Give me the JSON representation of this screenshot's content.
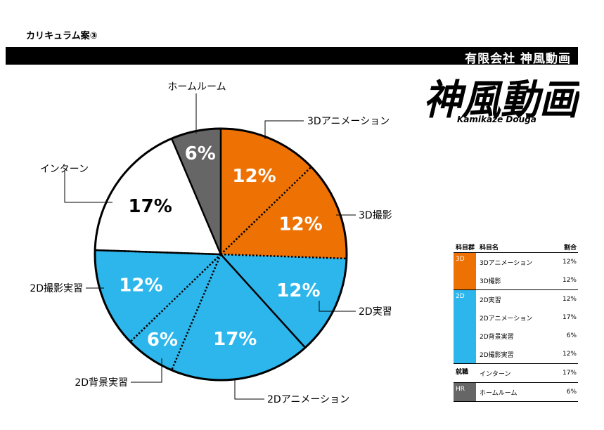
{
  "doc_title": "カリキュラム案③",
  "company": "有限会社 神風動画",
  "logo": {
    "main": "神風動画",
    "sub": "Kamikaze Douga"
  },
  "chart_data": {
    "type": "pie",
    "start_angle": 0,
    "slices": [
      {
        "label": "3Dアニメーション",
        "value": 12,
        "value_label": "12%",
        "color": "#ee7203",
        "text_color": "#ffffff"
      },
      {
        "label": "3D撮影",
        "value": 12,
        "value_label": "12%",
        "color": "#ee7203",
        "text_color": "#ffffff"
      },
      {
        "label": "2D実習",
        "value": 12,
        "value_label": "12%",
        "color": "#2cb6ec",
        "text_color": "#ffffff"
      },
      {
        "label": "2Dアニメーション",
        "value": 17,
        "value_label": "17%",
        "color": "#2cb6ec",
        "text_color": "#ffffff"
      },
      {
        "label": "2D背景実習",
        "value": 6,
        "value_label": "6%",
        "color": "#2cb6ec",
        "text_color": "#ffffff"
      },
      {
        "label": "2D撮影実習",
        "value": 12,
        "value_label": "12%",
        "color": "#2cb6ec",
        "text_color": "#ffffff"
      },
      {
        "label": "インターン",
        "value": 17,
        "value_label": "17%",
        "color": "#ffffff",
        "text_color": "#000000"
      },
      {
        "label": "ホームルーム",
        "value": 6,
        "value_label": "6%",
        "color": "#666666",
        "text_color": "#ffffff"
      }
    ]
  },
  "table": {
    "headers": [
      "科目群",
      "科目名",
      "割合"
    ],
    "groups": [
      {
        "name": "3D",
        "color": "#ee7203",
        "rows": [
          {
            "subject": "3Dアニメーション",
            "pct": "12%"
          },
          {
            "subject": "3D撮影",
            "pct": "12%"
          }
        ]
      },
      {
        "name": "2D",
        "color": "#2cb6ec",
        "rows": [
          {
            "subject": "2D実習",
            "pct": "12%"
          },
          {
            "subject": "2Dアニメーション",
            "pct": "17%"
          },
          {
            "subject": "2D背景実習",
            "pct": "6%"
          },
          {
            "subject": "2D撮影実習",
            "pct": "12%"
          }
        ]
      },
      {
        "name": "就職",
        "color": "#ffffff",
        "rows": [
          {
            "subject": "インターン",
            "pct": "17%"
          }
        ]
      },
      {
        "name": "HR",
        "color": "#666666",
        "rows": [
          {
            "subject": "ホームルーム",
            "pct": "6%"
          }
        ]
      }
    ]
  }
}
